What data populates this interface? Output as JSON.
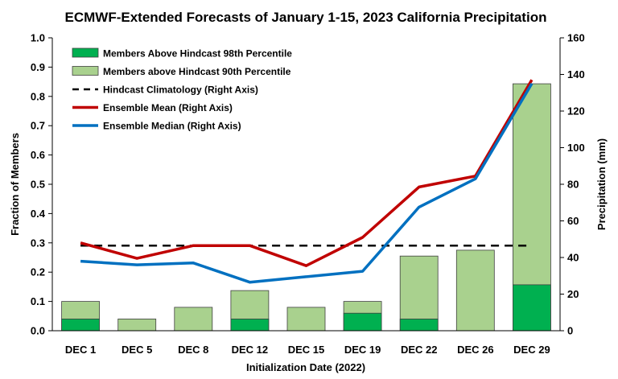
{
  "chart_data": {
    "type": "bar",
    "title": "ECMWF-Extended Forecasts of January 1-15, 2023 California Precipitation",
    "xlabel": "Initialization Date (2022)",
    "ylabel": "Fraction of Members",
    "y2label": "Precipitation (mm)",
    "categories": [
      "DEC 1",
      "DEC 5",
      "DEC 8",
      "DEC 12",
      "DEC 15",
      "DEC 19",
      "DEC 22",
      "DEC 26",
      "DEC 29"
    ],
    "ylim": [
      0,
      1.0
    ],
    "y2lim": [
      0,
      160
    ],
    "yticks": [
      "0.0",
      "0.1",
      "0.2",
      "0.3",
      "0.4",
      "0.5",
      "0.6",
      "0.7",
      "0.8",
      "0.9",
      "1.0"
    ],
    "y2ticks": [
      "0",
      "20",
      "40",
      "60",
      "80",
      "100",
      "120",
      "140",
      "160"
    ],
    "grid": false,
    "legend_position": "top-left",
    "series": [
      {
        "name": "Members Above Hindcast 98th Percentile",
        "kind": "bar",
        "axis": "left",
        "color": "#00b050",
        "values": [
          0.04,
          0.0,
          0.0,
          0.04,
          0.0,
          0.06,
          0.04,
          0.0,
          0.157
        ]
      },
      {
        "name": "Members above Hindcast 90th Percentile",
        "kind": "bar",
        "axis": "left",
        "color": "#a9d18e",
        "values": [
          0.1,
          0.04,
          0.08,
          0.137,
          0.08,
          0.1,
          0.255,
          0.275,
          0.843
        ]
      },
      {
        "name": "Hindcast Climatology (Right Axis)",
        "kind": "dashed-line",
        "axis": "right",
        "color": "#000000",
        "values": [
          46.5,
          46.5,
          46.5,
          46.5,
          46.5,
          46.5,
          46.5,
          46.5,
          46.5
        ]
      },
      {
        "name": "Ensemble Mean (Right Axis)",
        "kind": "line",
        "axis": "right",
        "color": "#c00000",
        "values": [
          48,
          39.5,
          46.5,
          46.5,
          35.5,
          51,
          78.5,
          84.5,
          137
        ]
      },
      {
        "name": "Ensemble Median (Right Axis)",
        "kind": "line",
        "axis": "right",
        "color": "#0070c0",
        "values": [
          38,
          36,
          37,
          26.5,
          29.5,
          32.5,
          67.5,
          83,
          135
        ]
      }
    ]
  }
}
